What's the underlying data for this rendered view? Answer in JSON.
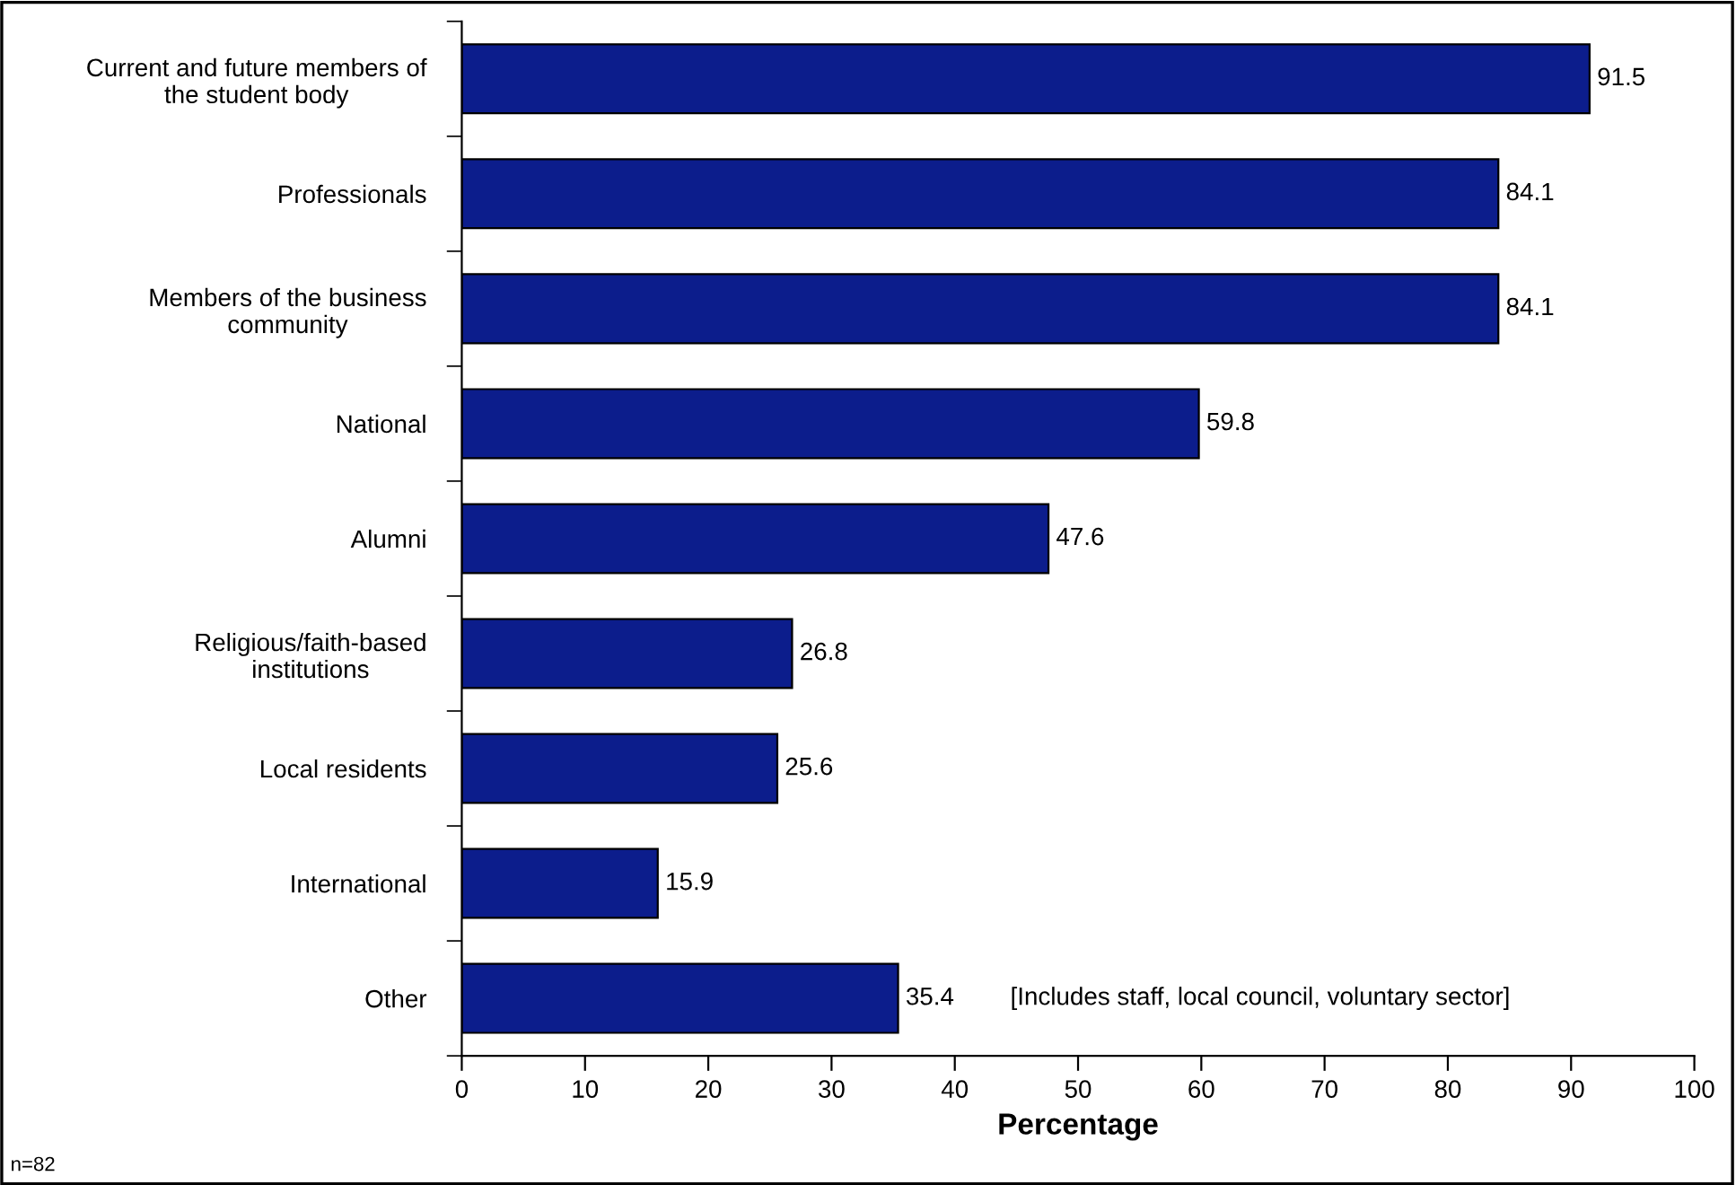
{
  "chart_data": {
    "type": "bar",
    "orientation": "horizontal",
    "xlabel": "Percentage",
    "categories": [
      "Current and future members of the student body",
      "Professionals",
      "Members of the business community",
      "National",
      "Alumni",
      "Religious/faith-based institutions",
      "Local residents",
      "International",
      "Other"
    ],
    "values": [
      91.5,
      84.1,
      84.1,
      59.8,
      47.6,
      26.8,
      25.6,
      15.9,
      35.4
    ],
    "color": "#0c1d8c",
    "data_labels": true,
    "grid": false,
    "legend": false,
    "xlim": [
      0,
      100
    ],
    "xticks": [
      0,
      10,
      20,
      30,
      40,
      50,
      60,
      70,
      80,
      90,
      100
    ],
    "annotations": [
      "[Includes staff, local council, voluntary sector]",
      "n=82"
    ]
  }
}
